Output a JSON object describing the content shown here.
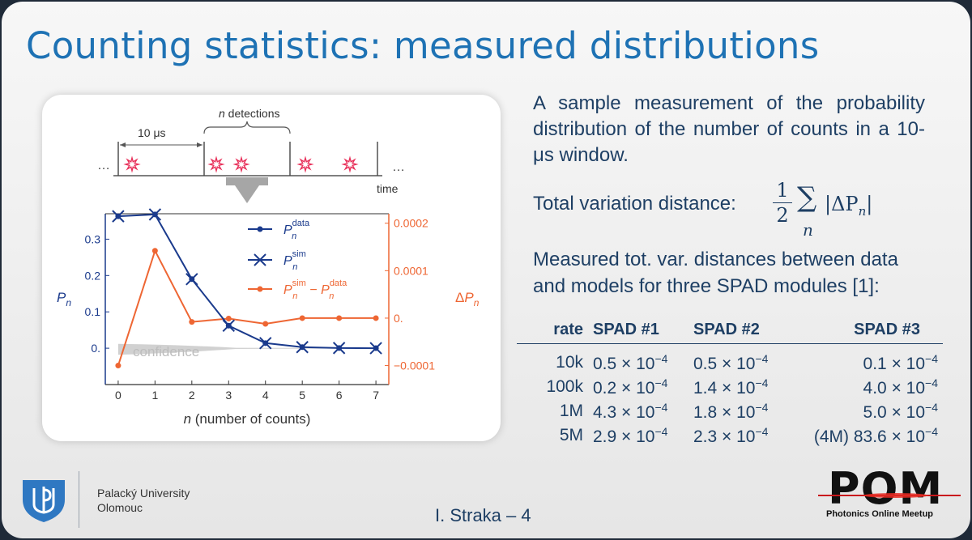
{
  "slide": {
    "title": "Counting statistics: measured distributions",
    "footer": "I. Straka – 4"
  },
  "university": {
    "line1": "Palacký University",
    "line2": "Olomouc"
  },
  "pom_logo": {
    "word": "POM",
    "subtitle": "Photonics Online Meetup"
  },
  "description": "A sample measurement of the probability distribution of the number of counts in a 10-μs window.",
  "tvd": {
    "label": "Total variation distance:",
    "numerator": "1",
    "denominator": "2",
    "sum_symbol": "∑",
    "sum_index": "n",
    "expression": "|ΔP",
    "expression_sub": "n",
    "expression_end": "|"
  },
  "measured_text": "Measured tot. var. distances between data and models for three SPAD modules [1]:",
  "table": {
    "headers": [
      "rate",
      "SPAD #1",
      "SPAD #2",
      "SPAD #3"
    ],
    "rows": [
      {
        "rate": "10k",
        "s1": "0.5 × 10",
        "s2": "0.5 × 10",
        "s3": "0.1 × 10"
      },
      {
        "rate": "100k",
        "s1": "0.2 × 10",
        "s2": "1.4 × 10",
        "s3": "4.0 × 10"
      },
      {
        "rate": "1M",
        "s1": "4.3 × 10",
        "s2": "1.8 × 10",
        "s3": "5.0 × 10"
      },
      {
        "rate": "5M",
        "s1": "2.9 × 10",
        "s2": "2.3 × 10",
        "s3": "(4M) 83.6 × 10"
      }
    ],
    "exponent": "−4"
  },
  "diagram": {
    "window_label": "10 μs",
    "detections_label": "n detections",
    "ellipsis": "…",
    "time_label": "time"
  },
  "chart_data": {
    "type": "line",
    "x": [
      0,
      1,
      2,
      3,
      4,
      5,
      6,
      7
    ],
    "xlabel": "n (number of counts)",
    "ylabel_left": "P",
    "ylabel_left_sub": "n",
    "ylabel_right": "ΔP",
    "ylabel_right_sub": "n",
    "xlim": [
      -0.35,
      7.35
    ],
    "ylim_left": [
      -0.1,
      0.37
    ],
    "ylim_right": [
      -0.00014,
      0.00022
    ],
    "left_ticks": [
      "0.",
      "0.1",
      "0.2",
      "0.3"
    ],
    "right_ticks": [
      "−0.0001",
      "0.",
      "0.0001",
      "0.0002"
    ],
    "x_ticks": [
      "0",
      "1",
      "2",
      "3",
      "4",
      "5",
      "6",
      "7"
    ],
    "series": [
      {
        "axis": "left",
        "marker": "dot",
        "values": [
          0.363,
          0.368,
          0.19,
          0.062,
          0.014,
          0.003,
          0.0005,
          0.0001
        ]
      },
      {
        "axis": "left",
        "marker": "x",
        "values": [
          0.363,
          0.368,
          0.19,
          0.062,
          0.014,
          0.003,
          0.0005,
          0.0001
        ]
      },
      {
        "axis": "right",
        "marker": "dot",
        "values": [
          -0.0001,
          0.000142,
          -8e-06,
          -1e-06,
          -1.2e-05,
          0.0,
          0.0,
          0.0
        ]
      }
    ],
    "legend": [
      {
        "base": "P",
        "sub": "n",
        "sup": "data"
      },
      {
        "base": "P",
        "sub": "n",
        "sup": "sim"
      },
      {
        "base": "P",
        "sub": "n",
        "sup": "sim",
        "minus": " − ",
        "base2": "P",
        "sub2": "n",
        "sup2": "data"
      }
    ],
    "annotation": "confidence",
    "colors": {
      "data": "#1a3a8c",
      "diff": "#ee6633",
      "confidence": "#bdbdbd",
      "star": "#e8305a"
    },
    "legend_position": "top-right",
    "grid": false
  }
}
